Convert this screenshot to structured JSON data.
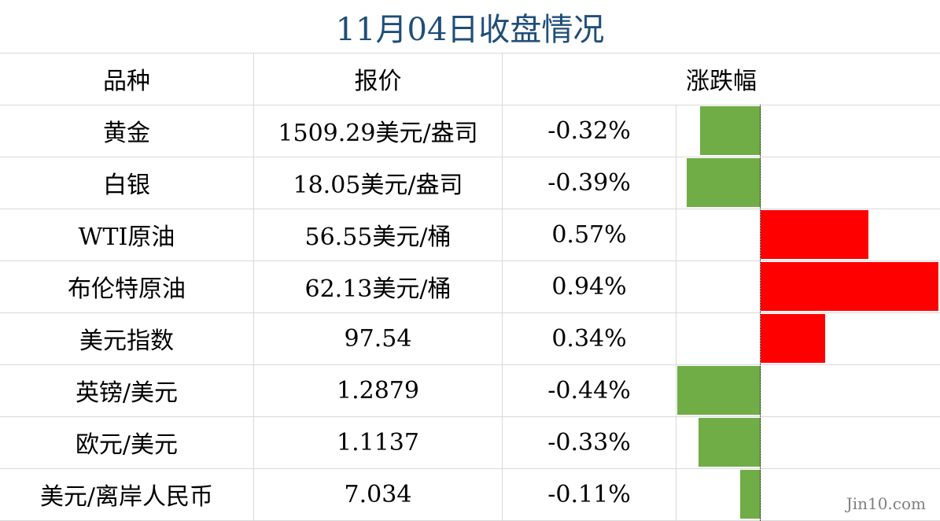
{
  "title": "11月04日收盘情况",
  "headers": {
    "name": "品种",
    "price": "报价",
    "change": "涨跌幅"
  },
  "colors": {
    "up": "#ff0000",
    "down": "#70ad47",
    "title": "#1f4e79"
  },
  "chart_data": {
    "type": "bar",
    "orientation": "horizontal",
    "categories": [
      "黄金",
      "白银",
      "WTI原油",
      "布伦特原油",
      "美元指数",
      "英镑/美元",
      "欧元/美元",
      "美元/离岸人民币"
    ],
    "series": [
      {
        "values": [
          -0.32,
          -0.39,
          0.57,
          0.94,
          0.34,
          -0.44,
          -0.33,
          -0.11
        ]
      }
    ],
    "xlim": [
      -0.44,
      0.94
    ]
  },
  "rows": [
    {
      "name": "黄金",
      "price": "1509.29美元/盎司",
      "change": "-0.32%"
    },
    {
      "name": "白银",
      "price": "18.05美元/盎司",
      "change": "-0.39%"
    },
    {
      "name": "WTI原油",
      "price": "56.55美元/桶",
      "change": "0.57%"
    },
    {
      "name": "布伦特原油",
      "price": "62.13美元/桶",
      "change": "0.94%"
    },
    {
      "name": "美元指数",
      "price": "97.54",
      "change": "0.34%"
    },
    {
      "name": "英镑/美元",
      "price": "1.2879",
      "change": "-0.44%"
    },
    {
      "name": "欧元/美元",
      "price": "1.1137",
      "change": "-0.33%"
    },
    {
      "name": "美元/离岸人民币",
      "price": "7.034",
      "change": "-0.11%"
    }
  ],
  "watermark": "Jin10.com"
}
